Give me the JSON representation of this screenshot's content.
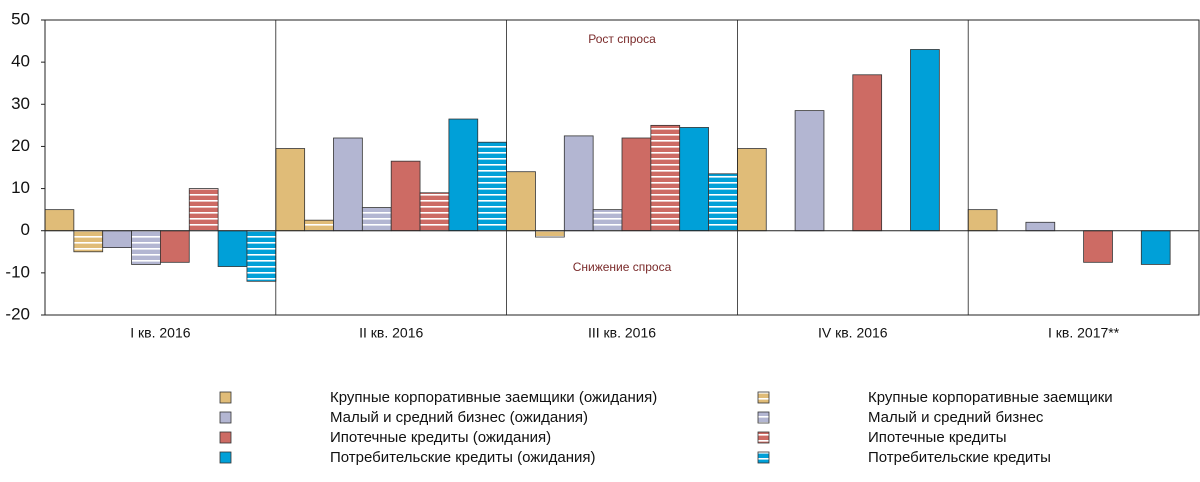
{
  "chart_data": {
    "type": "bar",
    "categories": [
      "I кв. 2016",
      "II кв. 2016",
      "III кв. 2016",
      "IV кв. 2016",
      "I кв. 2017**"
    ],
    "series": [
      {
        "name": "Крупные корпоративные заемщики (ожидания)",
        "color": "#e0bc78",
        "striped": false,
        "values": [
          5,
          19.5,
          14,
          19.5,
          5
        ]
      },
      {
        "name": "Крупные корпоративные заемщики",
        "color": "#e0bc78",
        "striped": true,
        "values": [
          -5,
          2.5,
          -1.5,
          null,
          null
        ]
      },
      {
        "name": "Малый и средний бизнес (ожидания)",
        "color": "#b3b6d2",
        "striped": false,
        "values": [
          -4,
          22,
          22.5,
          28.5,
          2
        ]
      },
      {
        "name": "Малый и средний бизнес",
        "color": "#b3b6d2",
        "striped": true,
        "values": [
          -8,
          5.5,
          5,
          null,
          null
        ]
      },
      {
        "name": "Ипотечные кредиты (ожидания)",
        "color": "#cd6b64",
        "striped": false,
        "values": [
          -7.5,
          16.5,
          22,
          37,
          -7.5
        ]
      },
      {
        "name": "Ипотечные кредиты",
        "color": "#cd6b64",
        "striped": true,
        "values": [
          10,
          9,
          25,
          null,
          null
        ]
      },
      {
        "name": "Потребительские кредиты (ожидания)",
        "color": "#00a0d8",
        "striped": false,
        "values": [
          -8.5,
          26.5,
          24.5,
          43,
          -8
        ]
      },
      {
        "name": "Потребительские кредиты",
        "color": "#00a0d8",
        "striped": true,
        "values": [
          -12,
          21,
          13.5,
          null,
          null
        ]
      }
    ],
    "ylim": [
      -20,
      50
    ],
    "yticks": [
      -20,
      -10,
      0,
      10,
      20,
      30,
      40,
      50
    ],
    "annotations": [
      "Рост спроса",
      "Снижение спроса"
    ]
  }
}
